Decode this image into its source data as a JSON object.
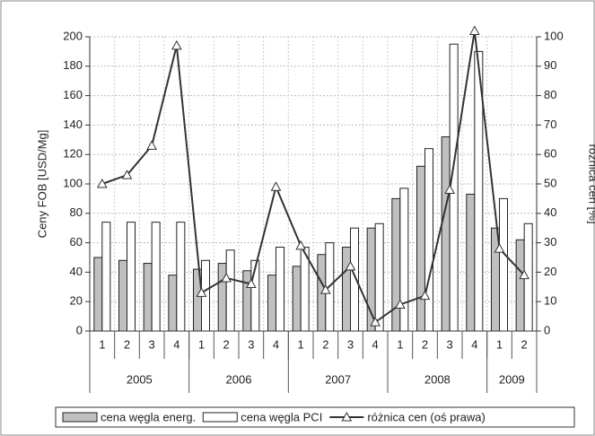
{
  "chart_data": {
    "type": "bar_line",
    "groups": [
      {
        "name": "2005",
        "categories": [
          "1",
          "2",
          "3",
          "4"
        ]
      },
      {
        "name": "2006",
        "categories": [
          "1",
          "2",
          "3",
          "4"
        ]
      },
      {
        "name": "2007",
        "categories": [
          "1",
          "2",
          "3",
          "4"
        ]
      },
      {
        "name": "2008",
        "categories": [
          "1",
          "2",
          "3",
          "4"
        ]
      },
      {
        "name": "2009",
        "categories": [
          "1",
          "2"
        ]
      }
    ],
    "series": [
      {
        "name": "cena węgla energ.",
        "type": "bar",
        "color": "#c0c0c0",
        "values": [
          50,
          48,
          46,
          38,
          42,
          46,
          41,
          38,
          44,
          52,
          57,
          70,
          90,
          112,
          132,
          93,
          70,
          62
        ]
      },
      {
        "name": "cena węgla PCI",
        "type": "bar",
        "color": "#ffffff",
        "values": [
          74,
          74,
          74,
          74,
          48,
          55,
          48,
          57,
          57,
          60,
          70,
          73,
          97,
          124,
          195,
          190,
          90,
          73
        ]
      },
      {
        "name": "różnica cen (oś prawa)",
        "type": "line",
        "axis": "y2",
        "color": "#333333",
        "values": [
          50,
          53,
          63,
          97,
          13,
          18,
          16,
          49,
          29,
          14,
          22,
          3,
          9,
          12,
          48,
          102,
          28,
          19
        ]
      }
    ],
    "ylabel": "Ceny FOB [USD/Mg]",
    "y2label": "różnica cen [%]",
    "ylim": [
      0,
      200
    ],
    "yticks": [
      0,
      20,
      40,
      60,
      80,
      100,
      120,
      140,
      160,
      180,
      200
    ],
    "y2lim": [
      0,
      100
    ],
    "y2ticks": [
      0,
      10,
      20,
      30,
      40,
      50,
      60,
      70,
      80,
      90,
      100
    ],
    "grid": true,
    "legend": "bottom"
  }
}
